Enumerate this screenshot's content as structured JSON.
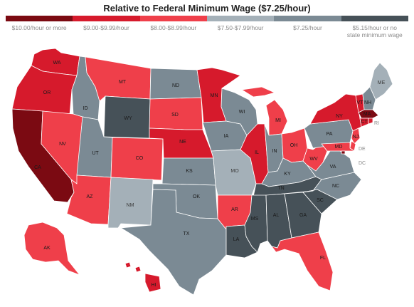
{
  "title": "Relative to Federal Minimum Wage ($7.25/hour)",
  "legend": [
    {
      "label": "$10.00/hour or more",
      "color": "#7b0a12"
    },
    {
      "label": "$9.00-$9.99/hour",
      "color": "#d61a2c"
    },
    {
      "label": "$8.00-$8.99/hour",
      "color": "#ef3f4a"
    },
    {
      "label": "$7.50-$7.99/hour",
      "color": "#a4b0b8"
    },
    {
      "label": "$7.25/hour",
      "color": "#7b8a94"
    },
    {
      "label": "$5.15/hour or no\nstate minimum wage",
      "color": "#465158"
    }
  ],
  "states": {
    "WA": 1,
    "OR": 1,
    "CA": 0,
    "NV": 2,
    "ID": 4,
    "MT": 2,
    "WY": 5,
    "UT": 4,
    "AZ": 2,
    "CO": 2,
    "NM": 3,
    "ND": 4,
    "SD": 2,
    "NE": 1,
    "KS": 4,
    "OK": 4,
    "TX": 4,
    "MN": 1,
    "IA": 4,
    "MO": 3,
    "AR": 2,
    "LA": 5,
    "WI": 4,
    "IL": 1,
    "MI": 2,
    "IN": 4,
    "OH": 2,
    "KY": 4,
    "TN": 5,
    "MS": 5,
    "AL": 5,
    "GA": 5,
    "FL": 2,
    "SC": 5,
    "NC": 4,
    "VA": 4,
    "WV": 2,
    "PA": 4,
    "NY": 1,
    "ME": 3,
    "VT": 1,
    "NH": 4,
    "MA": 0,
    "CT": 1,
    "RI": 1,
    "NJ": 2,
    "DE": 2,
    "MD": 2,
    "DC": 0,
    "AK": 2,
    "HI": 1
  }
}
